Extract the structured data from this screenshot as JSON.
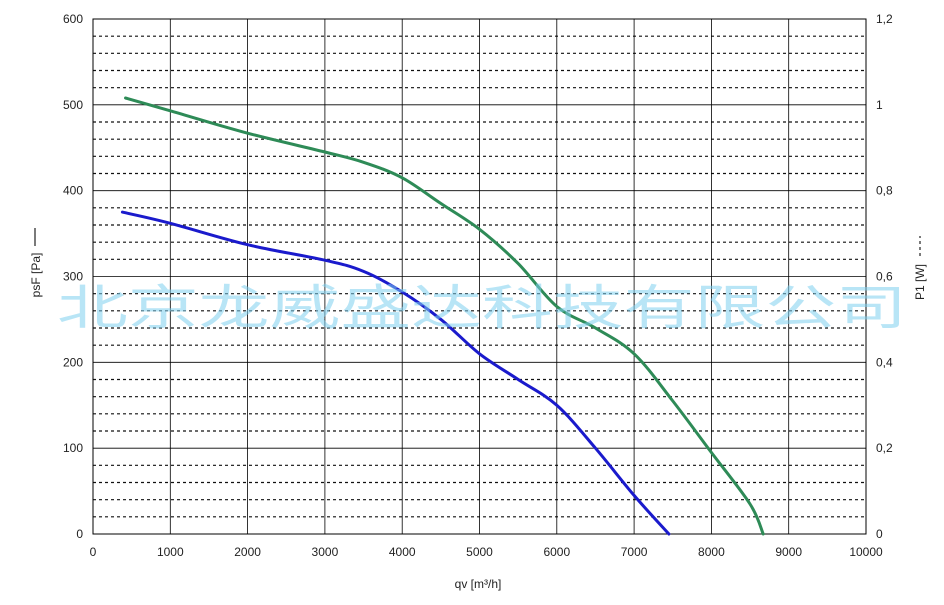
{
  "watermark": "北京龙威盛达科技有限公司",
  "chart_data": {
    "type": "line",
    "xlabel": "qv [m³/h]",
    "ylabel_left": "psF [Pa]",
    "ylabel_right": "P1 [W]",
    "xlim": [
      0,
      10000
    ],
    "ylim_left": [
      0,
      600
    ],
    "ylim_right": [
      0,
      1.2
    ],
    "grid": true,
    "x_ticks": [
      "0",
      "1000",
      "2000",
      "3000",
      "4000",
      "5000",
      "6000",
      "7000",
      "8000",
      "9000",
      "10000"
    ],
    "y_left_ticks": [
      "0",
      "100",
      "200",
      "300",
      "400",
      "500",
      "600"
    ],
    "y_right_ticks": [
      "0",
      "0,2",
      "0,4",
      "0,6",
      "0,8",
      "1",
      "1,2"
    ],
    "series": [
      {
        "color": "#1a1acc",
        "axis": "left",
        "x": [
          380,
          1000,
          2000,
          3000,
          3500,
          4000,
          4500,
          5000,
          5500,
          6000,
          6500,
          7000,
          7450
        ],
        "y": [
          375,
          362,
          337,
          319,
          306,
          282,
          250,
          210,
          180,
          150,
          100,
          45,
          0
        ]
      },
      {
        "color": "#2e8b57",
        "axis": "left",
        "x": [
          420,
          1000,
          2000,
          3000,
          3500,
          4000,
          4500,
          5000,
          5500,
          6000,
          6500,
          7000,
          7500,
          8000,
          8500,
          8670
        ],
        "y": [
          508,
          493,
          467,
          445,
          433,
          415,
          385,
          355,
          315,
          265,
          240,
          210,
          155,
          95,
          35,
          0
        ]
      }
    ]
  }
}
